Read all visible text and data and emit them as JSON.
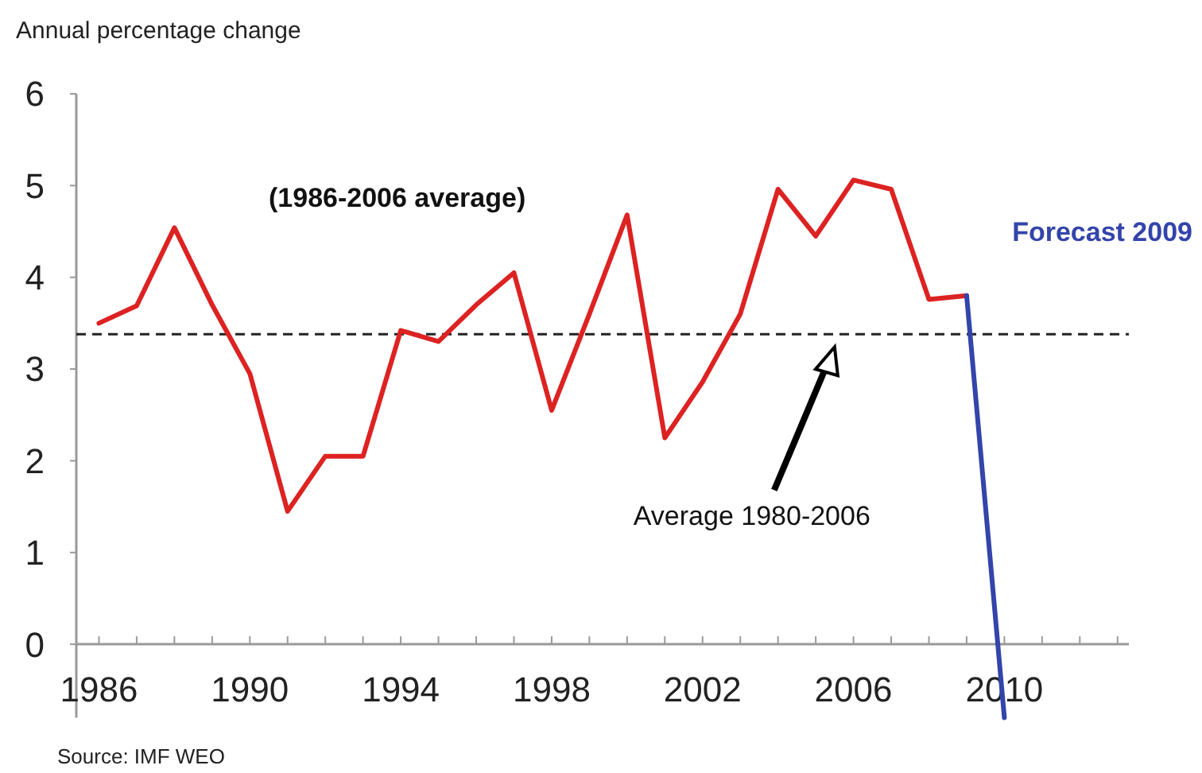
{
  "chart_data": {
    "type": "line",
    "ylabel": "Annual percentage change",
    "x": [
      1986,
      1987,
      1988,
      1989,
      1990,
      1991,
      1992,
      1993,
      1994,
      1995,
      1996,
      1997,
      1998,
      1999,
      2000,
      2001,
      2002,
      2003,
      2004,
      2005,
      2006,
      2007,
      2008,
      2009
    ],
    "series": [
      {
        "color": "#dd2222",
        "values": [
          3.5,
          3.69,
          4.54,
          3.7,
          2.95,
          1.45,
          2.05,
          2.05,
          3.42,
          3.3,
          3.7,
          4.05,
          2.55,
          3.6,
          4.68,
          2.25,
          2.86,
          3.6,
          4.96,
          4.45,
          5.06,
          4.96,
          3.76,
          3.8
        ]
      },
      {
        "name": "Forecast 2009",
        "color": "#3344aa",
        "x": [
          2009,
          2010
        ],
        "values": [
          3.8,
          -0.8
        ]
      }
    ],
    "xlim": [
      1985.4,
      2013.3
    ],
    "xticks": [
      1986,
      {
        "value": 1987,
        "label": null
      },
      {
        "value": 1988,
        "label": null
      },
      {
        "value": 1989,
        "label": null
      },
      1990,
      {
        "value": 1991,
        "label": null
      },
      {
        "value": 1992,
        "label": null
      },
      {
        "value": 1993,
        "label": null
      },
      1994,
      {
        "value": 1995,
        "label": null
      },
      {
        "value": 1996,
        "label": null
      },
      {
        "value": 1997,
        "label": null
      },
      1998,
      {
        "value": 1999,
        "label": null
      },
      {
        "value": 2000,
        "label": null
      },
      {
        "value": 2001,
        "label": null
      },
      2002,
      {
        "value": 2003,
        "label": null
      },
      {
        "value": 2004,
        "label": null
      },
      {
        "value": 2005,
        "label": null
      },
      2006,
      {
        "value": 2007,
        "label": null
      },
      {
        "value": 2008,
        "label": null
      },
      {
        "value": 2009,
        "label": null
      },
      2010,
      {
        "value": 2011,
        "label": null
      },
      {
        "value": 2012,
        "label": null
      },
      {
        "value": 2013,
        "label": null
      }
    ],
    "ylim": [
      -0.8,
      6
    ],
    "yticks": [
      0,
      1,
      2,
      3,
      4,
      5,
      6
    ],
    "ref_lines": [
      {
        "axis": "y",
        "value": 3.38,
        "label": "(1986-2006 average)",
        "color": "#222222",
        "line_style": "dashed"
      }
    ],
    "annotations": [
      "Average 1980-2006",
      "Source: IMF WEO"
    ],
    "grid": false,
    "marker": "none",
    "line_style": "solid"
  }
}
